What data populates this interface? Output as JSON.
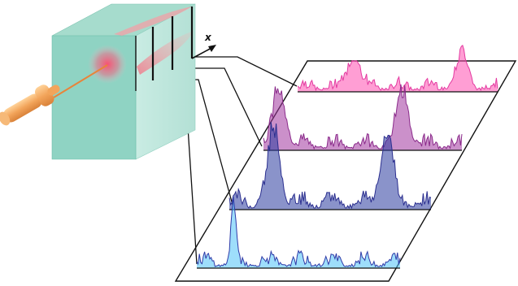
{
  "labels": {
    "axis_x": "x"
  },
  "colors": {
    "block_front": "#8fd3c3",
    "block_side": "#bfe6dc",
    "block_top": "#a8ddcf",
    "beam": "#f2a45a",
    "beam_dark": "#d9823a",
    "glow": "#f05a78",
    "trace_line": "#111111",
    "traces": [
      "#e33aa0",
      "#8a2a8a",
      "#2b2f8f",
      "#2e3aa8"
    ],
    "peak_fill": [
      "#ff4fb0",
      "#a0349e",
      "#2a3a9e",
      "#4fc3f7"
    ]
  },
  "icons": {
    "beam": "laser-beam-icon",
    "block": "sample-block-icon",
    "arrow": "x-axis-arrow-icon"
  },
  "traces": [
    {
      "name": "trace-1",
      "peaks": [
        0.28,
        0.82
      ]
    },
    {
      "name": "trace-2",
      "peaks": [
        0.08,
        0.7
      ]
    },
    {
      "name": "trace-3",
      "peaks": [
        0.22,
        0.78
      ]
    },
    {
      "name": "trace-4",
      "peaks": [
        0.18
      ]
    }
  ]
}
